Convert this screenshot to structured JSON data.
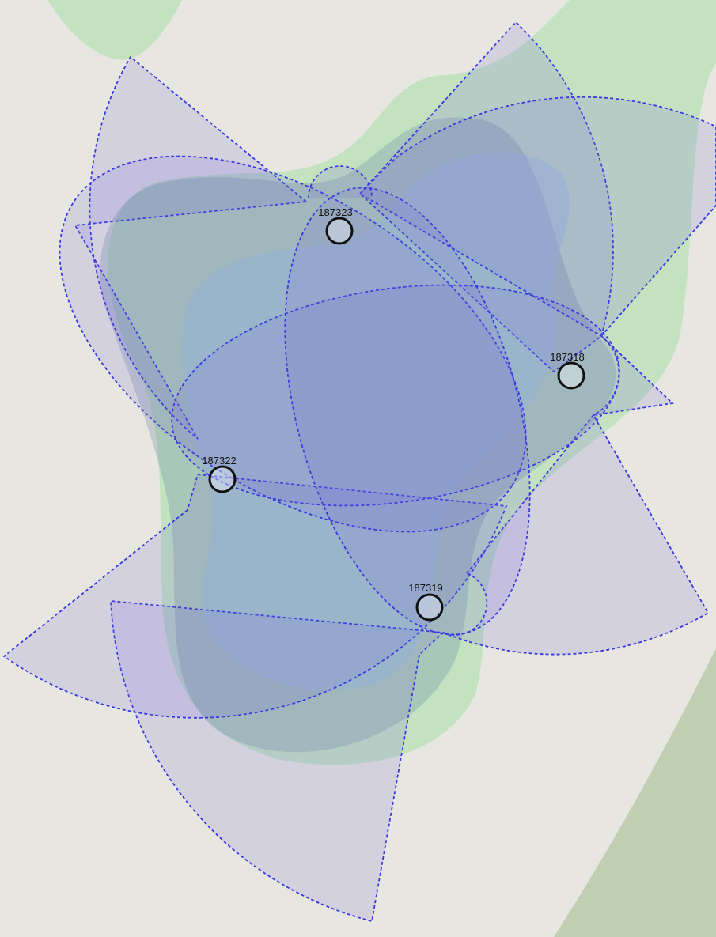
{
  "sites": [
    {
      "label": "187323"
    },
    {
      "label": "187318"
    },
    {
      "label": "187322"
    },
    {
      "label": "187319"
    }
  ]
}
